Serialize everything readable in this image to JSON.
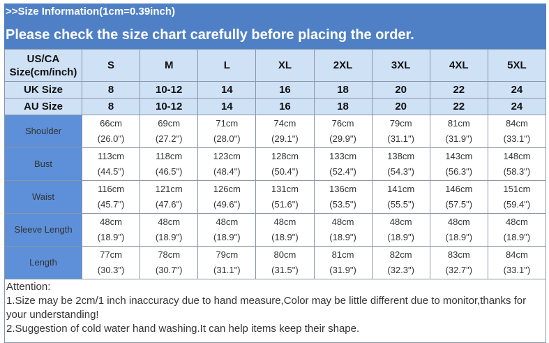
{
  "title": ">>Size Information(1cm=0.39inch)",
  "subtitle": "Please check the size chart carefully before placing the order.",
  "header": {
    "label": "US/CA Size(cm/inch)",
    "sizes": [
      "S",
      "M",
      "L",
      "XL",
      "2XL",
      "3XL",
      "4XL",
      "5XL"
    ]
  },
  "uk": {
    "label": "UK Size",
    "values": [
      "8",
      "10-12",
      "14",
      "16",
      "18",
      "20",
      "22",
      "24"
    ]
  },
  "au": {
    "label": "AU Size",
    "values": [
      "8",
      "10-12",
      "14",
      "16",
      "18",
      "20",
      "22",
      "24"
    ]
  },
  "rows": [
    {
      "label": "Shoulder",
      "cm": [
        "66cm",
        "69cm",
        "71cm",
        "74cm",
        "76cm",
        "79cm",
        "81cm",
        "84cm"
      ],
      "inch": [
        "(26.0\")",
        "(27.2\")",
        "(28.0\")",
        "(29.1\")",
        "(29.9\")",
        "(31.1\")",
        "(31.9\")",
        "(33.1\")"
      ]
    },
    {
      "label": "Bust",
      "cm": [
        "113cm",
        "118cm",
        "123cm",
        "128cm",
        "133cm",
        "138cm",
        "143cm",
        "148cm"
      ],
      "inch": [
        "(44.5\")",
        "(46.5\")",
        "(48.4\")",
        "(50.4\")",
        "(52.4\")",
        "(54.3\")",
        "(56.3\")",
        "(58.3\")"
      ]
    },
    {
      "label": "Waist",
      "cm": [
        "116cm",
        "121cm",
        "126cm",
        "131cm",
        "136cm",
        "141cm",
        "146cm",
        "151cm"
      ],
      "inch": [
        "(45.7\")",
        "(47.6\")",
        "(49.6\")",
        "(51.6\")",
        "(53.5\")",
        "(55.5\")",
        "(57.5\")",
        "(59.4\")"
      ]
    },
    {
      "label": "Sleeve Length",
      "cm": [
        "48cm",
        "48cm",
        "48cm",
        "48cm",
        "48cm",
        "48cm",
        "48cm",
        "48cm"
      ],
      "inch": [
        "(18.9\")",
        "(18.9\")",
        "(18.9\")",
        "(18.9\")",
        "(18.9\")",
        "(18.9\")",
        "(18.9\")",
        "(18.9\")"
      ]
    },
    {
      "label": "Length",
      "cm": [
        "77cm",
        "78cm",
        "79cm",
        "80cm",
        "81cm",
        "82cm",
        "83cm",
        "84cm"
      ],
      "inch": [
        "(30.3\")",
        "(30.7\")",
        "(31.1\")",
        "(31.5\")",
        "(31.9\")",
        "(32.3\")",
        "(32.7\")",
        "(33.1\")"
      ]
    }
  ],
  "attention": {
    "heading": "Attention:",
    "lines": [
      "1.Size may be 2cm/1 inch inaccuracy due to hand measure,Color may be little different due to monitor,thanks for your understanding!",
      "2.Suggestion of cold water hand washing.It can help items keep their shape."
    ]
  }
}
